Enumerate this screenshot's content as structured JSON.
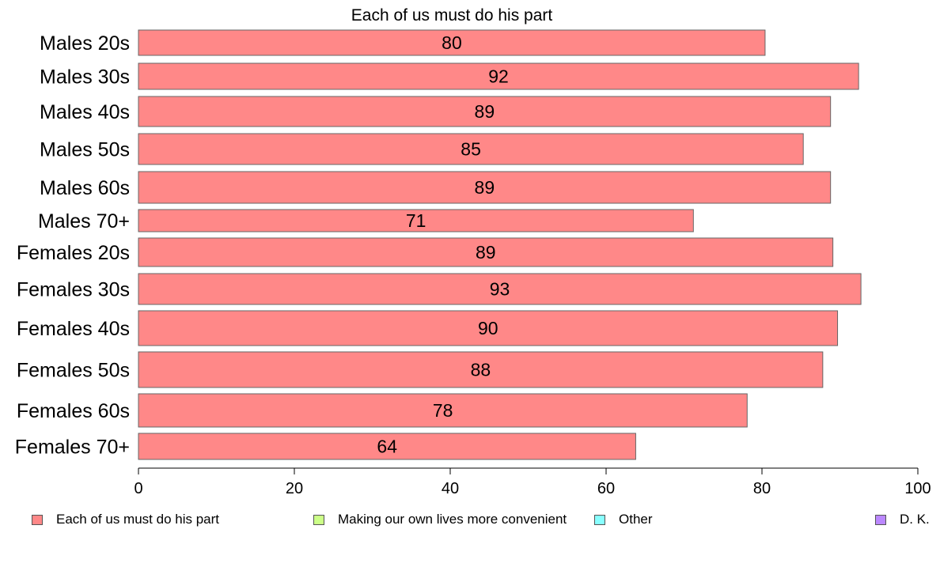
{
  "chart_data": {
    "type": "bar",
    "orientation": "horizontal",
    "title": "Each of us must do his part",
    "xlabel": "",
    "ylabel": "",
    "categories": [
      "Males 20s",
      "Males 30s",
      "Males 40s",
      "Males 50s",
      "Males 60s",
      "Males 70+",
      "Females 20s",
      "Females 30s",
      "Females 40s",
      "Females 50s",
      "Females 60s",
      "Females 70+"
    ],
    "series": [
      {
        "name": "Each of us must do his part",
        "color": "#ff8888",
        "values": [
          80.4,
          92.4,
          88.8,
          85.3,
          88.8,
          71.2,
          89.1,
          92.7,
          89.7,
          87.8,
          78.1,
          63.8
        ],
        "labels": [
          "80",
          "92",
          "89",
          "85",
          "89",
          "71",
          "89",
          "93",
          "90",
          "88",
          "78",
          "64"
        ]
      }
    ],
    "xlim": [
      0,
      100
    ],
    "xticks": [
      "0",
      "20",
      "40",
      "60",
      "80",
      "100"
    ],
    "grid": false,
    "legend_position": "bottom",
    "legend": [
      {
        "label": "Each of us must do his part",
        "color": "#ff8888"
      },
      {
        "label": "Making our own lives more convenient",
        "color": "#ccff88"
      },
      {
        "label": "Other",
        "color": "#88ffff"
      },
      {
        "label": "D. K.",
        "color": "#bb88ff"
      }
    ]
  }
}
